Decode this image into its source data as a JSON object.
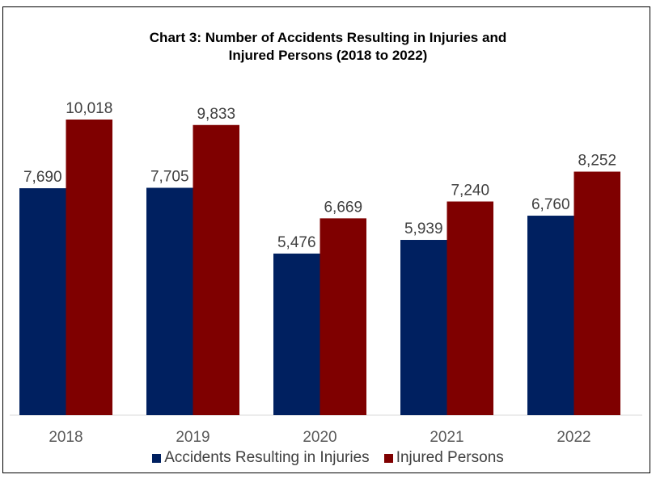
{
  "chart_data": {
    "type": "bar",
    "title": [
      "Chart 3: Number of Accidents Resulting in Injuries and",
      "Injured Persons (2018 to 2022)"
    ],
    "xlabel": "",
    "ylabel": "",
    "categories": [
      "2018",
      "2019",
      "2020",
      "2021",
      "2022"
    ],
    "series": [
      {
        "name": "Accidents Resulting in Injuries",
        "color": "#002060",
        "values": [
          7690,
          7705,
          5476,
          5939,
          6760
        ],
        "labels": [
          "7,690",
          "7,705",
          "5,476",
          "5,939",
          "6,760"
        ]
      },
      {
        "name": "Injured Persons",
        "color": "#7F0000",
        "values": [
          10018,
          9833,
          6669,
          7240,
          8252
        ],
        "labels": [
          "10,018",
          "9,833",
          "6,669",
          "7,240",
          "8,252"
        ]
      }
    ],
    "ylim": [
      0,
      10018
    ],
    "grid": false,
    "legend": "bottom"
  }
}
